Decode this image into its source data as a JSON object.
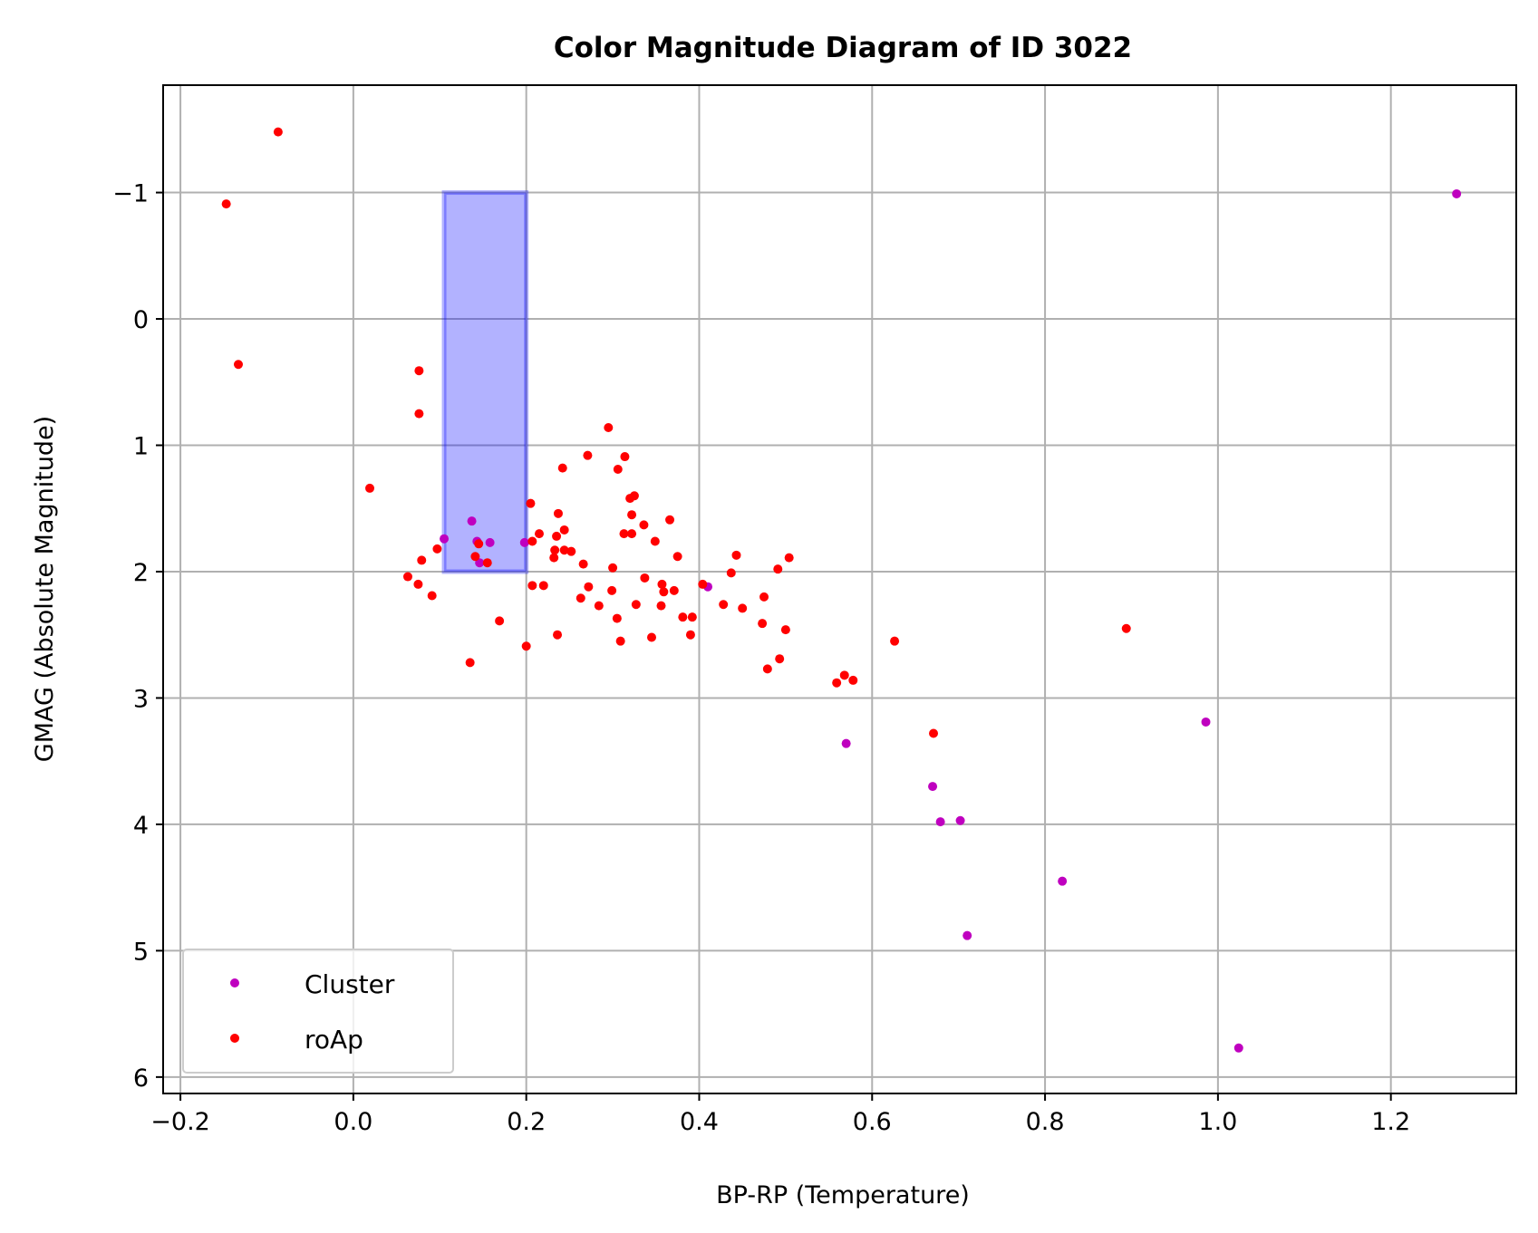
{
  "chart_data": {
    "type": "scatter",
    "title": "Color Magnitude Diagram of ID 3022",
    "xlabel": "BP-RP (Temperature)",
    "ylabel": "GMAG (Absolute Magnitude)",
    "xlim": [
      -0.22,
      1.345
    ],
    "ylim": [
      6.13,
      -1.85
    ],
    "y_inverted": true,
    "grid": true,
    "legend_position": "lower-left",
    "xticks": [
      -0.2,
      0.0,
      0.2,
      0.4,
      0.6,
      0.8,
      1.0,
      1.2
    ],
    "xtick_labels": [
      "−0.2",
      "0.0",
      "0.2",
      "0.4",
      "0.6",
      "0.8",
      "1.0",
      "1.2"
    ],
    "yticks": [
      -1,
      0,
      1,
      2,
      3,
      4,
      5,
      6
    ],
    "ytick_labels": [
      "−1",
      "0",
      "1",
      "2",
      "3",
      "4",
      "5",
      "6"
    ],
    "highlight_region": {
      "x": [
        0.105,
        0.2
      ],
      "y": [
        -1.0,
        2.0
      ],
      "color": "#0000ff",
      "alpha": 0.3
    },
    "series": [
      {
        "name": "Cluster",
        "color": "#bf00bf",
        "points": [
          [
            1.276,
            -0.99
          ],
          [
            0.986,
            3.19
          ],
          [
            0.57,
            3.36
          ],
          [
            0.67,
            3.7
          ],
          [
            0.679,
            3.98
          ],
          [
            0.702,
            3.97
          ],
          [
            0.82,
            4.45
          ],
          [
            0.71,
            4.88
          ],
          [
            1.024,
            5.77
          ],
          [
            0.105,
            1.74
          ],
          [
            0.137,
            1.6
          ],
          [
            0.198,
            1.77
          ],
          [
            0.143,
            1.76
          ],
          [
            0.146,
            1.93
          ],
          [
            0.158,
            1.77
          ],
          [
            0.41,
            2.12
          ]
        ]
      },
      {
        "name": "roAp",
        "color": "#ff0000",
        "points": [
          [
            -0.087,
            -1.48
          ],
          [
            -0.147,
            -0.91
          ],
          [
            -0.133,
            0.36
          ],
          [
            0.076,
            0.41
          ],
          [
            0.076,
            0.75
          ],
          [
            0.019,
            1.34
          ],
          [
            0.097,
            1.82
          ],
          [
            0.079,
            1.91
          ],
          [
            0.063,
            2.04
          ],
          [
            0.075,
            2.1
          ],
          [
            0.091,
            2.19
          ],
          [
            0.135,
            2.72
          ],
          [
            0.169,
            2.39
          ],
          [
            0.2,
            2.59
          ],
          [
            0.141,
            1.88
          ],
          [
            0.145,
            1.78
          ],
          [
            0.155,
            1.93
          ],
          [
            0.205,
            1.46
          ],
          [
            0.207,
            1.76
          ],
          [
            0.215,
            1.7
          ],
          [
            0.207,
            2.11
          ],
          [
            0.22,
            2.11
          ],
          [
            0.232,
            1.89
          ],
          [
            0.233,
            1.83
          ],
          [
            0.237,
            1.54
          ],
          [
            0.242,
            1.18
          ],
          [
            0.235,
            1.72
          ],
          [
            0.244,
            1.67
          ],
          [
            0.244,
            1.83
          ],
          [
            0.252,
            1.84
          ],
          [
            0.236,
            2.5
          ],
          [
            0.266,
            1.94
          ],
          [
            0.263,
            2.21
          ],
          [
            0.271,
            1.08
          ],
          [
            0.272,
            2.12
          ],
          [
            0.284,
            2.27
          ],
          [
            0.295,
            0.86
          ],
          [
            0.3,
            1.97
          ],
          [
            0.299,
            2.15
          ],
          [
            0.305,
            2.37
          ],
          [
            0.306,
            1.19
          ],
          [
            0.314,
            1.09
          ],
          [
            0.313,
            1.7
          ],
          [
            0.32,
            1.42
          ],
          [
            0.322,
            1.55
          ],
          [
            0.325,
            1.4
          ],
          [
            0.322,
            1.7
          ],
          [
            0.327,
            2.26
          ],
          [
            0.336,
            1.63
          ],
          [
            0.337,
            2.05
          ],
          [
            0.345,
            2.52
          ],
          [
            0.349,
            1.76
          ],
          [
            0.356,
            2.27
          ],
          [
            0.357,
            2.1
          ],
          [
            0.359,
            2.16
          ],
          [
            0.366,
            1.59
          ],
          [
            0.371,
            2.15
          ],
          [
            0.375,
            1.88
          ],
          [
            0.381,
            2.36
          ],
          [
            0.39,
            2.5
          ],
          [
            0.392,
            2.36
          ],
          [
            0.404,
            2.1
          ],
          [
            0.309,
            2.55
          ],
          [
            0.428,
            2.26
          ],
          [
            0.437,
            2.01
          ],
          [
            0.443,
            1.87
          ],
          [
            0.45,
            2.29
          ],
          [
            0.473,
            2.41
          ],
          [
            0.475,
            2.2
          ],
          [
            0.479,
            2.77
          ],
          [
            0.491,
            1.98
          ],
          [
            0.493,
            2.69
          ],
          [
            0.5,
            2.46
          ],
          [
            0.504,
            1.89
          ],
          [
            0.559,
            2.88
          ],
          [
            0.568,
            2.82
          ],
          [
            0.578,
            2.86
          ],
          [
            0.626,
            2.55
          ],
          [
            0.671,
            3.28
          ],
          [
            0.894,
            2.45
          ]
        ]
      }
    ]
  }
}
